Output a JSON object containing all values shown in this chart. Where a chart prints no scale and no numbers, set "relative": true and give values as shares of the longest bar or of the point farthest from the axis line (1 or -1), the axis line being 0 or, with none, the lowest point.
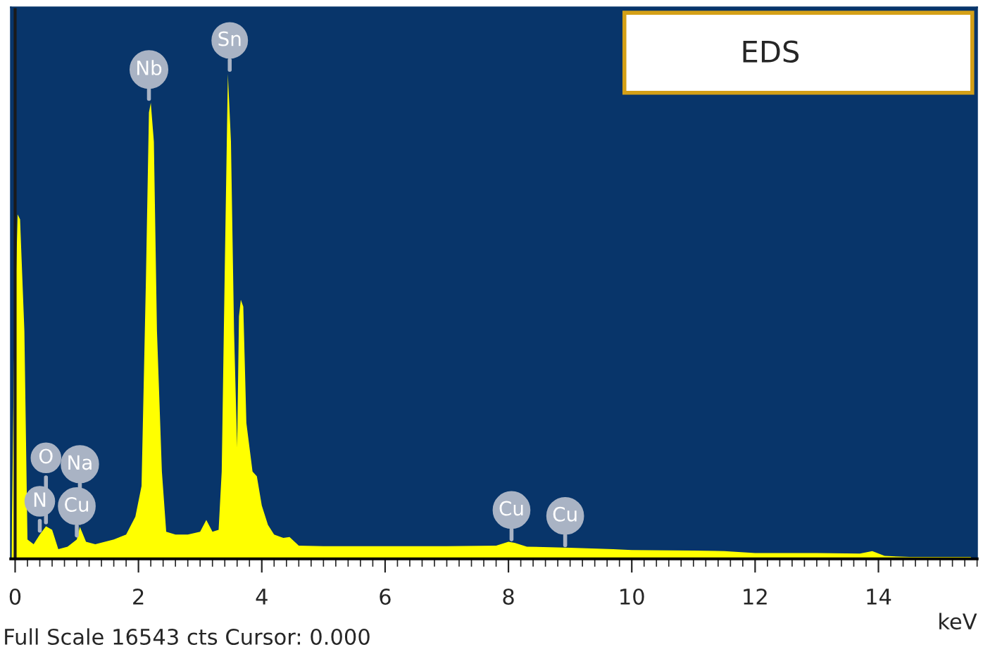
{
  "chart_data": {
    "type": "area",
    "relative": true,
    "xlabel": "keV",
    "xlim": [
      -0.07,
      15.6
    ],
    "xticks": [
      0,
      2,
      4,
      6,
      8,
      10,
      12,
      14
    ],
    "grid": false,
    "legend": false,
    "x": [
      -0.06,
      -0.02,
      0.04,
      0.08,
      0.15,
      0.2,
      0.3,
      0.4,
      0.5,
      0.6,
      0.7,
      0.85,
      1.0,
      1.05,
      1.15,
      1.3,
      1.6,
      1.8,
      1.95,
      2.05,
      2.12,
      2.17,
      2.2,
      2.25,
      2.3,
      2.38,
      2.45,
      2.6,
      2.8,
      3.0,
      3.1,
      3.2,
      3.3,
      3.35,
      3.4,
      3.45,
      3.5,
      3.55,
      3.6,
      3.63,
      3.66,
      3.7,
      3.75,
      3.85,
      3.92,
      4.0,
      4.1,
      4.2,
      4.35,
      4.45,
      4.6,
      5.0,
      6.0,
      7.0,
      7.8,
      8.0,
      8.1,
      8.3,
      9.0,
      9.7,
      10.0,
      11.0,
      11.5,
      12.0,
      13.0,
      13.7,
      13.9,
      14.1,
      14.5,
      15.5
    ],
    "series": [
      {
        "color": "#ffff00",
        "values": [
          0,
          0.4,
          0.71,
          0.7,
          0.47,
          0.04,
          0.03,
          0.05,
          0.067,
          0.06,
          0.02,
          0.025,
          0.04,
          0.066,
          0.035,
          0.03,
          0.04,
          0.05,
          0.087,
          0.15,
          0.57,
          0.92,
          0.94,
          0.86,
          0.47,
          0.18,
          0.056,
          0.05,
          0.05,
          0.056,
          0.08,
          0.056,
          0.06,
          0.18,
          0.6,
          1.0,
          0.86,
          0.47,
          0.23,
          0.5,
          0.534,
          0.52,
          0.28,
          0.18,
          0.17,
          0.11,
          0.07,
          0.05,
          0.043,
          0.045,
          0.027,
          0.026,
          0.026,
          0.026,
          0.027,
          0.035,
          0.033,
          0.025,
          0.023,
          0.02,
          0.018,
          0.017,
          0.016,
          0.012,
          0.012,
          0.011,
          0.016,
          0.006,
          0.004,
          0.004
        ]
      }
    ],
    "ref_lines": [
      {
        "axis": "x",
        "value": 0,
        "color": "#1a1a1a"
      }
    ],
    "annotations": [
      {
        "text": "Cu",
        "x": 1.0,
        "y": 0.04
      },
      {
        "text": "N",
        "x": 0.4,
        "y": 0.05
      },
      {
        "text": "Na",
        "x": 1.05,
        "y": 0.066
      },
      {
        "text": "O",
        "x": 0.5,
        "y": 0.067
      },
      {
        "text": "Nb",
        "x": 2.17,
        "y": 0.94
      },
      {
        "text": "Sn",
        "x": 3.48,
        "y": 1.0
      },
      {
        "text": "Cu",
        "x": 8.05,
        "y": 0.032
      },
      {
        "text": "Cu",
        "x": 8.92,
        "y": 0.02
      },
      "EDS",
      "Full Scale 16543 cts Cursor: 0.000"
    ]
  }
}
